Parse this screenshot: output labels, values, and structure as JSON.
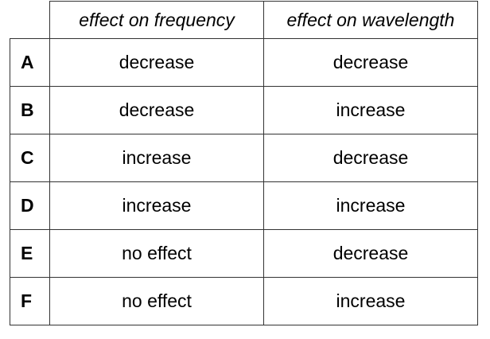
{
  "table": {
    "headers": [
      "",
      "effect on frequency",
      "effect on wavelength"
    ],
    "rows": [
      {
        "letter": "A",
        "frequency": "decrease",
        "wavelength": "decrease"
      },
      {
        "letter": "B",
        "frequency": "decrease",
        "wavelength": "increase"
      },
      {
        "letter": "C",
        "frequency": "increase",
        "wavelength": "decrease"
      },
      {
        "letter": "D",
        "frequency": "increase",
        "wavelength": "increase"
      },
      {
        "letter": "E",
        "frequency": "no effect",
        "wavelength": "decrease"
      },
      {
        "letter": "F",
        "frequency": "no effect",
        "wavelength": "increase"
      }
    ]
  }
}
